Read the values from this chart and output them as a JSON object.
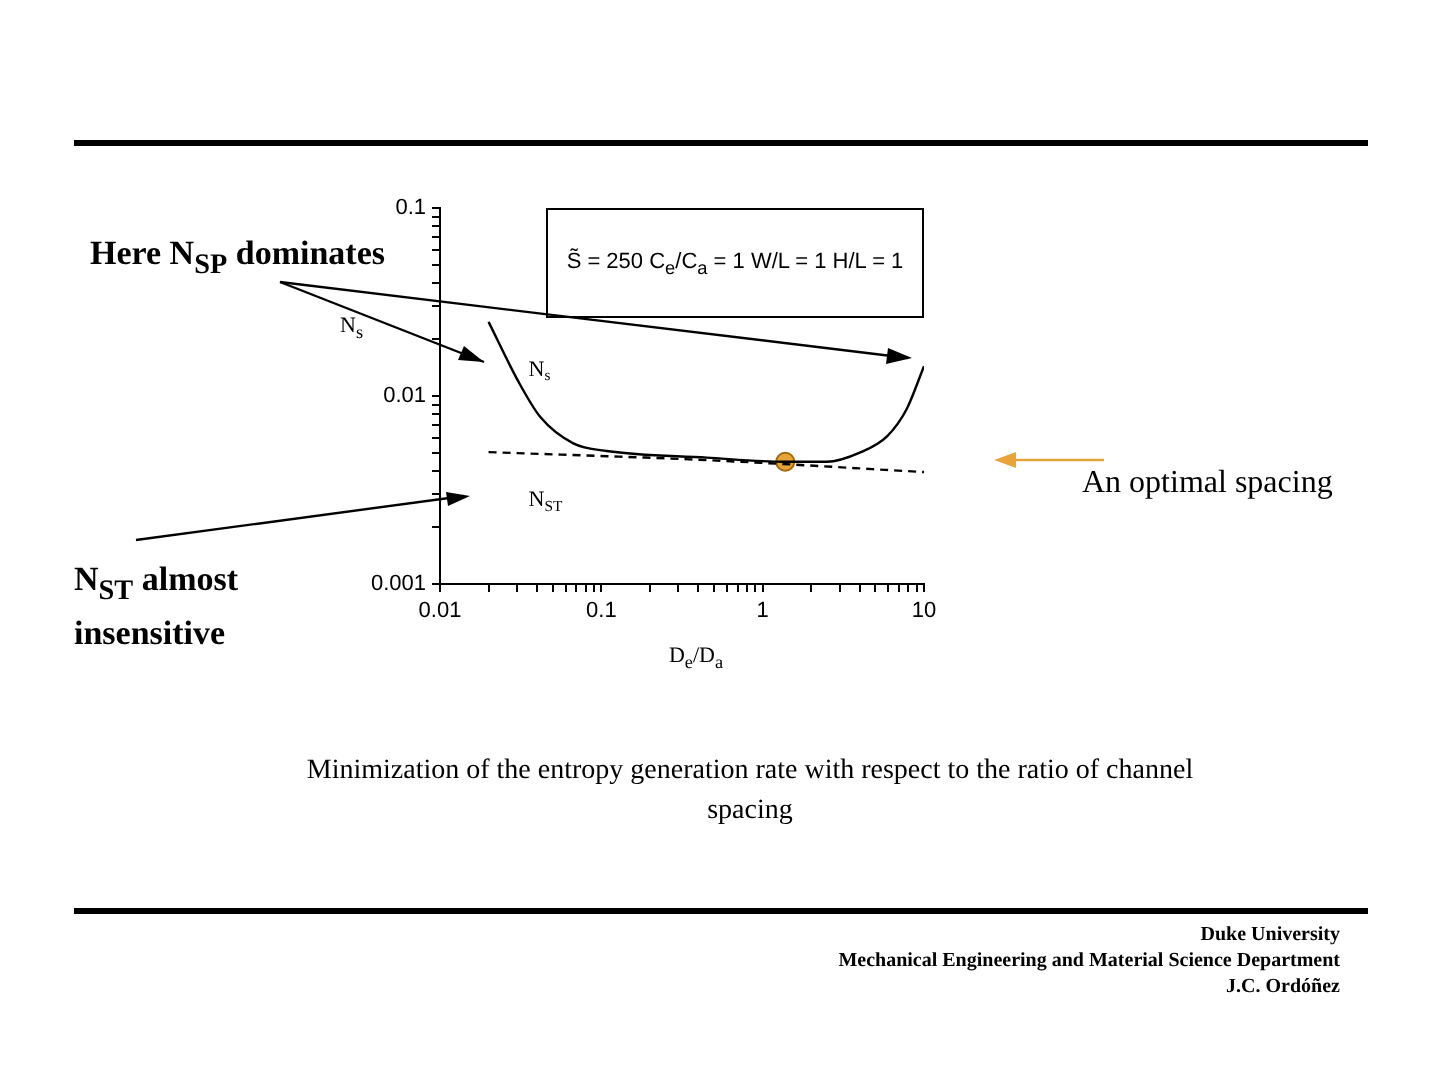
{
  "chart_data": {
    "type": "line",
    "xlabel": "D$_{e}$/D$_{a}$",
    "ylabel": "N$_{s}$",
    "log": "xy",
    "grid": false,
    "legend": false,
    "xlim": [
      0.01,
      10
    ],
    "xticks": [
      0.01,
      {
        "value": 0.02,
        "label": null
      },
      {
        "value": 0.03,
        "label": null
      },
      {
        "value": 0.04,
        "label": null
      },
      {
        "value": 0.05,
        "label": null
      },
      {
        "value": 0.06,
        "label": null
      },
      {
        "value": 0.07,
        "label": null
      },
      {
        "value": 0.08,
        "label": null
      },
      {
        "value": 0.09,
        "label": null
      },
      0.1,
      {
        "value": 0.2,
        "label": null
      },
      {
        "value": 0.3,
        "label": null
      },
      {
        "value": 0.4,
        "label": null
      },
      {
        "value": 0.5,
        "label": null
      },
      {
        "value": 0.6,
        "label": null
      },
      {
        "value": 0.7,
        "label": null
      },
      {
        "value": 0.8,
        "label": null
      },
      {
        "value": 0.9,
        "label": null
      },
      1,
      {
        "value": 2,
        "label": null
      },
      {
        "value": 3,
        "label": null
      },
      {
        "value": 4,
        "label": null
      },
      {
        "value": 5,
        "label": null
      },
      {
        "value": 6,
        "label": null
      },
      {
        "value": 7,
        "label": null
      },
      {
        "value": 8,
        "label": null
      },
      {
        "value": 9,
        "label": null
      },
      10
    ],
    "ylim": [
      0.001,
      0.1
    ],
    "yticks": [
      0.001,
      {
        "value": 0.002,
        "label": null
      },
      {
        "value": 0.003,
        "label": null
      },
      {
        "value": 0.004,
        "label": null
      },
      {
        "value": 0.005,
        "label": null
      },
      {
        "value": 0.006,
        "label": null
      },
      {
        "value": 0.007,
        "label": null
      },
      {
        "value": 0.008,
        "label": null
      },
      {
        "value": 0.009,
        "label": null
      },
      0.01,
      {
        "value": 0.02,
        "label": null
      },
      {
        "value": 0.03,
        "label": null
      },
      {
        "value": 0.04,
        "label": null
      },
      {
        "value": 0.05,
        "label": null
      },
      {
        "value": 0.06,
        "label": null
      },
      {
        "value": 0.07,
        "label": null
      },
      {
        "value": 0.08,
        "label": null
      },
      {
        "value": 0.09,
        "label": null
      },
      0.1
    ],
    "series": [
      {
        "name": "N$_{s}$",
        "color": "#000000",
        "line_style": "solid",
        "x": [
          0.02,
          0.031,
          0.042,
          0.067,
          0.108,
          0.45,
          1.38,
          2.5,
          4.0,
          5.9,
          7.8,
          10
        ],
        "values": [
          0.0248,
          0.0117,
          0.0077,
          0.0056,
          0.0051,
          0.0047,
          0.00447,
          0.00447,
          0.005,
          0.0061,
          0.0085,
          0.0144
        ]
      },
      {
        "name": "N$_{ST}$",
        "color": "#000000",
        "line_style": "dashed",
        "x": [
          0.02,
          0.45,
          10
        ],
        "values": [
          0.00503,
          0.00456,
          0.00394
        ]
      },
      {
        "type": "scatter",
        "color": "#e8a33a",
        "marker": "circle",
        "x": [
          1.38
        ],
        "values": [
          0.00447
        ]
      }
    ],
    "annotations": [
      "Here N$_{SP}$ dominates",
      "N$_{ST}$ almost insensitive",
      "An optimal spacing",
      "S̃ = 250   C$_{e}$/C$_{a}$ = 1   W/L = 1   H/L = 1",
      "Minimization of the entropy generation rate with respect to the ratio of channel spacing",
      "Duke University",
      "Mechanical Engineering and Material Science Department",
      "J.C. Ordóñez"
    ]
  }
}
